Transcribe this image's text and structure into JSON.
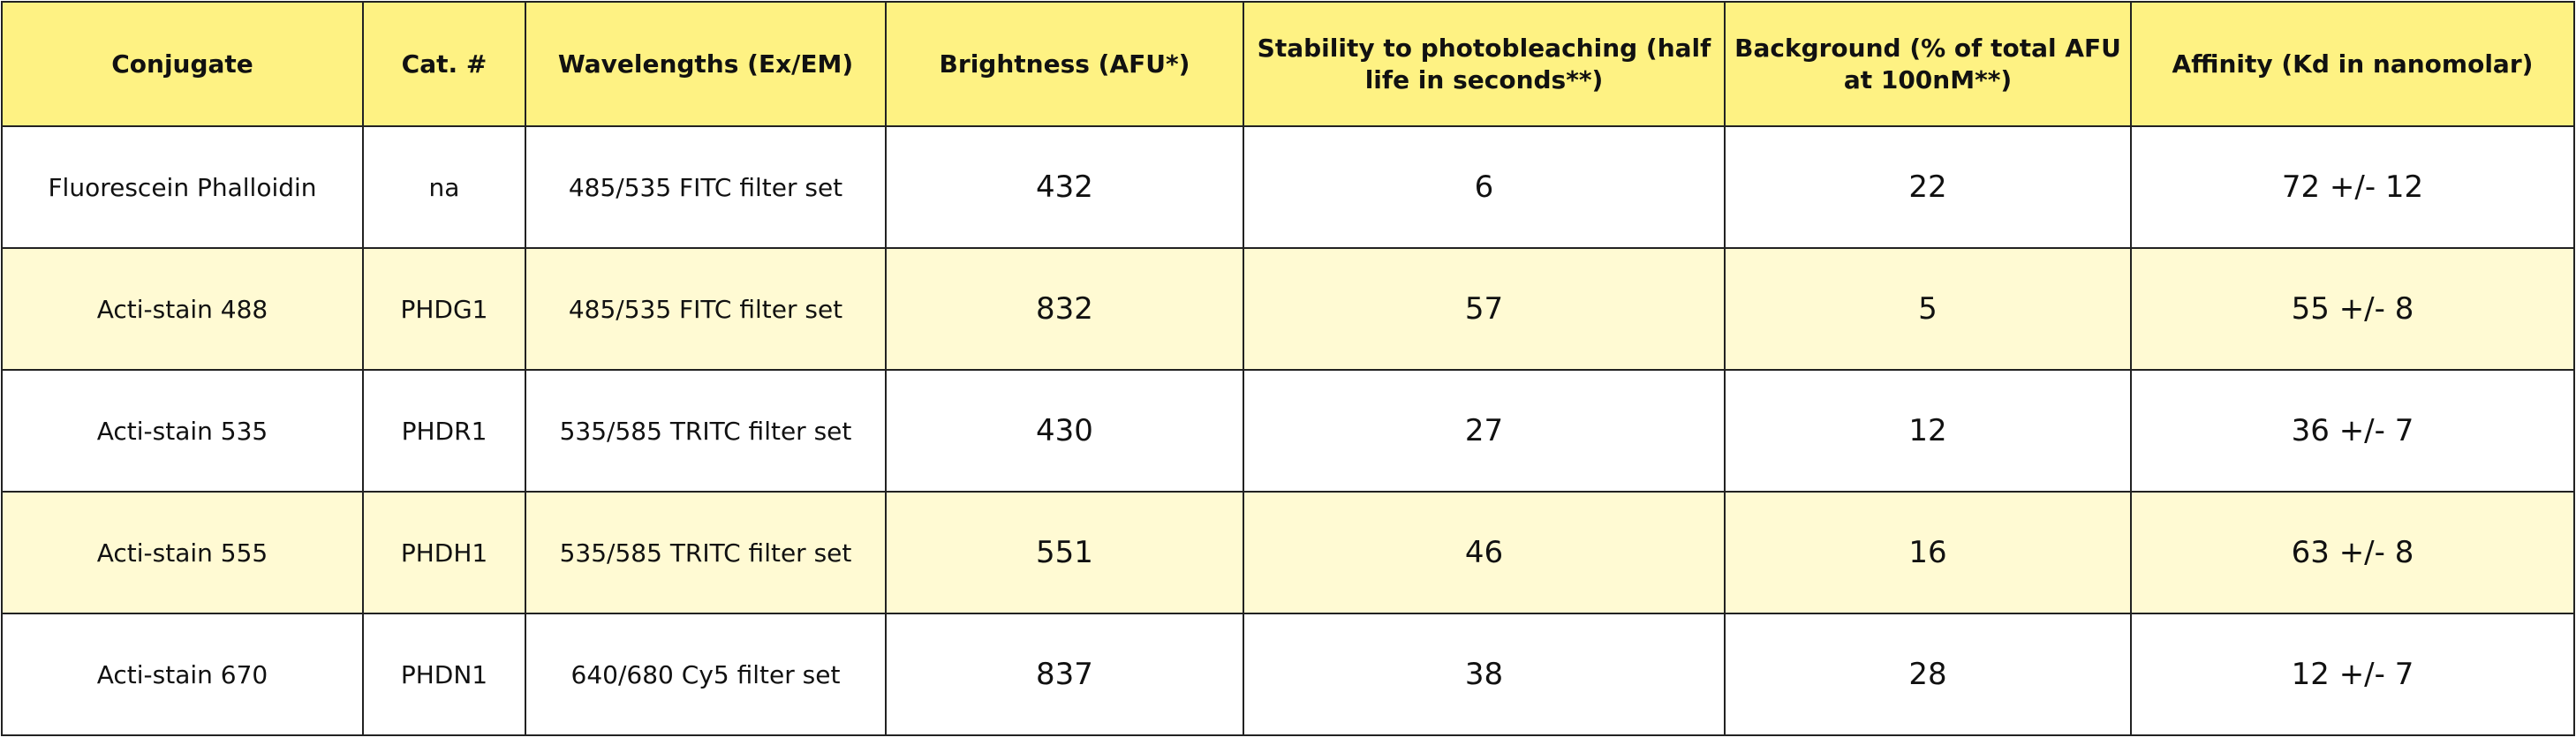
{
  "table": {
    "header": [
      "Conjugate",
      "Cat. #",
      "Wavelengths (Ex/EM)",
      "Brightness (AFU*)",
      "Stability to photobleaching (half life in seconds**)",
      "Background (% of total AFU at 100nM**)",
      "Affinity (Kd in nanomolar)"
    ],
    "rows": [
      [
        "Fluorescein Phalloidin",
        "na",
        "485/535 FITC filter set",
        432,
        6,
        22,
        "72 +/- 12"
      ],
      [
        "Acti-stain 488",
        "PHDG1",
        "485/535 FITC filter set",
        832,
        57,
        5,
        "55 +/- 8"
      ],
      [
        "Acti-stain 535",
        "PHDR1",
        "535/585 TRITC filter set",
        430,
        27,
        12,
        "36 +/- 7"
      ],
      [
        "Acti-stain 555",
        "PHDH1",
        "535/585 TRITC filter set",
        551,
        46,
        16,
        "63 +/- 8"
      ],
      [
        "Acti-stain 670",
        "PHDN1",
        "640/680 Cy5 filter set",
        837,
        38,
        28,
        "12 +/- 7"
      ]
    ]
  }
}
